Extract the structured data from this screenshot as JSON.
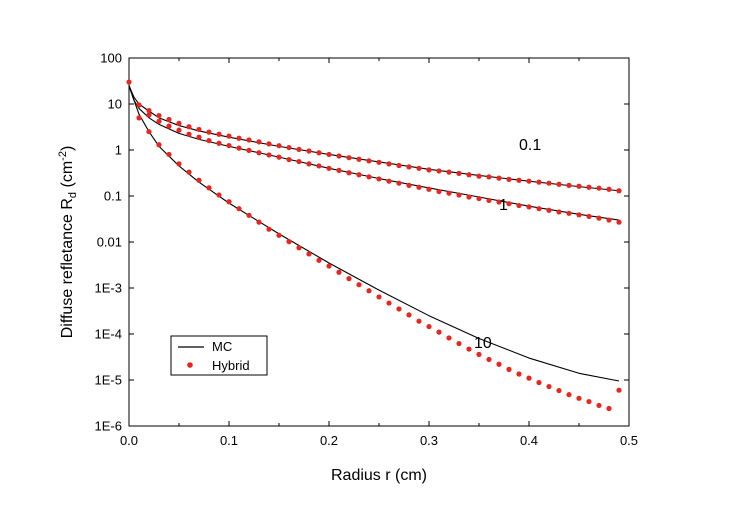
{
  "chart_data": {
    "type": "line",
    "title": "",
    "xlabel": "Radius r (cm)",
    "ylabel": {
      "main": "Diffuse refletance R",
      "sub": "d",
      "unit_open": " (cm",
      "unit_sup": "-2",
      "unit_close": ")"
    },
    "xlim": [
      0.0,
      0.5
    ],
    "ylim": [
      1e-06,
      100
    ],
    "yscale": "log",
    "grid": false,
    "legend_position": "lower-left",
    "x_ticks": [
      {
        "value": 0.0,
        "label": "0.0"
      },
      {
        "value": 0.1,
        "label": "0.1"
      },
      {
        "value": 0.2,
        "label": "0.2"
      },
      {
        "value": 0.3,
        "label": "0.3"
      },
      {
        "value": 0.4,
        "label": "0.4"
      },
      {
        "value": 0.5,
        "label": "0.5"
      }
    ],
    "y_ticks": [
      {
        "value": 100,
        "label": "100"
      },
      {
        "value": 10,
        "label": "10"
      },
      {
        "value": 1,
        "label": "1"
      },
      {
        "value": 0.1,
        "label": "0.1"
      },
      {
        "value": 0.01,
        "label": "0.01"
      },
      {
        "value": 0.001,
        "label": "1E-3"
      },
      {
        "value": 0.0001,
        "label": "1E-4"
      },
      {
        "value": 1e-05,
        "label": "1E-5"
      },
      {
        "value": 1e-06,
        "label": "1E-6"
      }
    ],
    "legend": [
      {
        "name": "MC",
        "style": "line",
        "color": "#000000"
      },
      {
        "name": "Hybrid",
        "style": "dot",
        "color": "#e8251e"
      }
    ],
    "annotations": [
      {
        "text": "0.1",
        "x": 0.39,
        "y": 1.0
      },
      {
        "text": "1",
        "x": 0.37,
        "y": 0.05
      },
      {
        "text": "10",
        "x": 0.345,
        "y": 5e-05
      }
    ],
    "series": [
      {
        "group": "0.1",
        "mc": {
          "x": [
            0.0,
            0.005,
            0.01,
            0.02,
            0.03,
            0.05,
            0.07,
            0.1,
            0.15,
            0.2,
            0.25,
            0.3,
            0.35,
            0.4,
            0.45,
            0.49
          ],
          "y": [
            25,
            14,
            10,
            7,
            5,
            3.4,
            2.6,
            1.9,
            1.2,
            0.8,
            0.55,
            0.38,
            0.28,
            0.21,
            0.16,
            0.13
          ]
        },
        "hybrid": {
          "x": [
            0.01,
            0.02,
            0.03,
            0.04,
            0.05,
            0.06,
            0.07,
            0.08,
            0.09,
            0.1,
            0.11,
            0.12,
            0.13,
            0.14,
            0.15,
            0.16,
            0.17,
            0.18,
            0.19,
            0.2,
            0.21,
            0.22,
            0.23,
            0.24,
            0.25,
            0.26,
            0.27,
            0.28,
            0.29,
            0.3,
            0.31,
            0.32,
            0.33,
            0.34,
            0.35,
            0.36,
            0.37,
            0.38,
            0.39,
            0.4,
            0.41,
            0.42,
            0.43,
            0.44,
            0.45,
            0.46,
            0.47,
            0.48,
            0.49
          ],
          "y": [
            9.5,
            7.2,
            5.6,
            4.6,
            3.8,
            3.2,
            2.8,
            2.45,
            2.2,
            2.0,
            1.8,
            1.65,
            1.5,
            1.36,
            1.24,
            1.13,
            1.03,
            0.95,
            0.87,
            0.8,
            0.74,
            0.68,
            0.63,
            0.58,
            0.54,
            0.5,
            0.46,
            0.43,
            0.4,
            0.37,
            0.35,
            0.33,
            0.31,
            0.29,
            0.27,
            0.26,
            0.245,
            0.23,
            0.22,
            0.21,
            0.2,
            0.19,
            0.18,
            0.17,
            0.163,
            0.155,
            0.148,
            0.14,
            0.13
          ]
        }
      },
      {
        "group": "1",
        "mc": {
          "x": [
            0.0,
            0.005,
            0.01,
            0.02,
            0.03,
            0.05,
            0.07,
            0.1,
            0.15,
            0.2,
            0.25,
            0.3,
            0.35,
            0.4,
            0.45,
            0.49
          ],
          "y": [
            25,
            12,
            8,
            5,
            3.6,
            2.3,
            1.7,
            1.2,
            0.7,
            0.4,
            0.24,
            0.15,
            0.095,
            0.06,
            0.04,
            0.03
          ]
        },
        "hybrid": {
          "x": [
            0.02,
            0.03,
            0.04,
            0.05,
            0.06,
            0.07,
            0.08,
            0.09,
            0.1,
            0.11,
            0.12,
            0.13,
            0.14,
            0.15,
            0.16,
            0.17,
            0.18,
            0.19,
            0.2,
            0.21,
            0.22,
            0.23,
            0.24,
            0.25,
            0.26,
            0.27,
            0.28,
            0.29,
            0.3,
            0.31,
            0.32,
            0.33,
            0.34,
            0.35,
            0.36,
            0.37,
            0.38,
            0.39,
            0.4,
            0.41,
            0.42,
            0.43,
            0.44,
            0.45,
            0.46,
            0.47,
            0.48,
            0.49
          ],
          "y": [
            5.8,
            4.2,
            3.3,
            2.7,
            2.2,
            1.9,
            1.6,
            1.4,
            1.25,
            1.1,
            0.98,
            0.87,
            0.78,
            0.7,
            0.62,
            0.56,
            0.5,
            0.45,
            0.4,
            0.36,
            0.32,
            0.29,
            0.26,
            0.235,
            0.21,
            0.19,
            0.17,
            0.155,
            0.14,
            0.125,
            0.115,
            0.105,
            0.095,
            0.088,
            0.08,
            0.074,
            0.068,
            0.062,
            0.058,
            0.053,
            0.049,
            0.045,
            0.042,
            0.039,
            0.036,
            0.033,
            0.03,
            0.027
          ]
        }
      },
      {
        "group": "10",
        "mc": {
          "x": [
            0.0,
            0.005,
            0.01,
            0.02,
            0.03,
            0.05,
            0.07,
            0.1,
            0.15,
            0.2,
            0.25,
            0.3,
            0.35,
            0.4,
            0.45,
            0.49
          ],
          "y": [
            25,
            12,
            6,
            2.5,
            1.2,
            0.45,
            0.2,
            0.07,
            0.015,
            0.0035,
            0.0009,
            0.00025,
            8e-05,
            3e-05,
            1.4e-05,
            9.5e-06
          ]
        },
        "hybrid": {
          "x": [
            0.0,
            0.01,
            0.02,
            0.03,
            0.04,
            0.05,
            0.06,
            0.07,
            0.08,
            0.09,
            0.1,
            0.11,
            0.12,
            0.13,
            0.14,
            0.15,
            0.16,
            0.17,
            0.18,
            0.19,
            0.2,
            0.21,
            0.22,
            0.23,
            0.24,
            0.25,
            0.26,
            0.27,
            0.28,
            0.29,
            0.3,
            0.31,
            0.32,
            0.33,
            0.34,
            0.35,
            0.36,
            0.37,
            0.38,
            0.39,
            0.4,
            0.41,
            0.42,
            0.43,
            0.44,
            0.45,
            0.46,
            0.47,
            0.48,
            0.49
          ],
          "y": [
            30,
            5.0,
            2.5,
            1.3,
            0.8,
            0.5,
            0.33,
            0.22,
            0.15,
            0.105,
            0.075,
            0.053,
            0.038,
            0.027,
            0.019,
            0.014,
            0.0102,
            0.0075,
            0.0055,
            0.004,
            0.003,
            0.0022,
            0.0016,
            0.00118,
            0.00087,
            0.00064,
            0.00047,
            0.00035,
            0.00026,
            0.00019,
            0.000145,
            0.00011,
            8.2e-05,
            6.2e-05,
            4.7e-05,
            3.6e-05,
            2.8e-05,
            2.2e-05,
            1.7e-05,
            1.35e-05,
            1.1e-05,
            8.8e-06,
            7.2e-06,
            5.9e-06,
            4.8e-06,
            4e-06,
            3.4e-06,
            2.8e-06,
            2.4e-06,
            6e-06
          ]
        }
      }
    ]
  }
}
